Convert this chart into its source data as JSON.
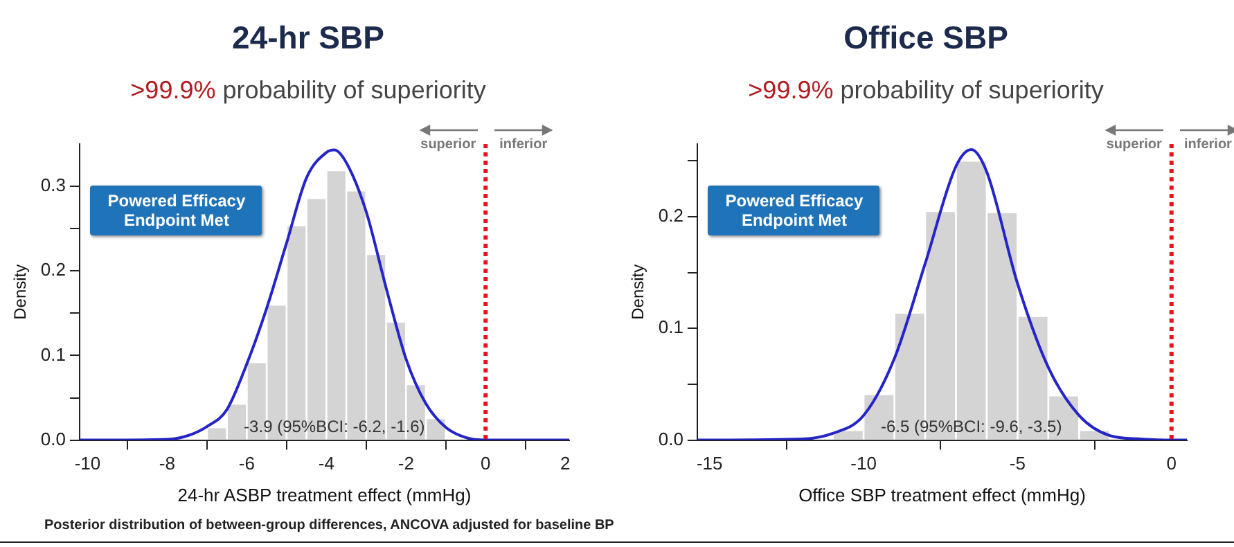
{
  "chart_data": [
    {
      "type": "histogram",
      "title": "24-hr SBP",
      "subtitle": ">99.9% probability of superiority",
      "xlabel": "24-hr ASBP treatment effect (mmHg)",
      "ylabel": "Density",
      "xlim": [
        -10.2,
        2.1
      ],
      "xticks": [
        -10,
        -8,
        -6,
        -4,
        -2,
        0,
        2
      ],
      "ylim": [
        0,
        0.35
      ],
      "yticks": [
        {
          "value": 0,
          "label": "0.0"
        },
        {
          "value": 0.05,
          "label": null
        },
        0.1,
        {
          "value": 0.15,
          "label": null
        },
        0.2,
        {
          "value": 0.25,
          "label": null
        },
        0.3
      ],
      "grid": false,
      "legend": false,
      "marker": "none",
      "series": [
        {
          "color": "#d4d4d4",
          "bins": [
            -7,
            -6.5,
            -6,
            -5.5,
            -5,
            -4.5,
            -4,
            -3.5,
            -3,
            -2.5,
            -2,
            -1.5,
            -1
          ],
          "values": [
            0.015,
            0.043,
            0.092,
            0.16,
            0.254,
            0.286,
            0.319,
            0.295,
            0.22,
            0.14,
            0.066,
            0.026
          ]
        },
        {
          "type": "line",
          "color": "#2424c8",
          "x": [
            -10.2,
            -8,
            -7.5,
            -7,
            -6.5,
            -6,
            -5.5,
            -5,
            -4.5,
            -4,
            -3.8,
            -3.5,
            -3,
            -2.5,
            -2,
            -1.5,
            -1,
            -0.5,
            0,
            2.1
          ],
          "values": [
            0,
            0.001,
            0.005,
            0.016,
            0.036,
            0.09,
            0.156,
            0.233,
            0.31,
            0.34,
            0.343,
            0.328,
            0.27,
            0.18,
            0.096,
            0.043,
            0.015,
            0.003,
            0,
            0
          ]
        }
      ],
      "ref_lines": [
        {
          "axis": "x",
          "value": 0,
          "color": "#e8141c",
          "line_style": "dotted"
        }
      ],
      "annotations": [
        "Powered Efficacy Endpoint Met",
        "superior",
        "inferior",
        "-3.9 (95%BCI: -6.2, -1.6)",
        "Posterior distribution of between-group differences, ANCOVA adjusted for baseline BP"
      ]
    },
    {
      "type": "histogram",
      "title": "Office SBP",
      "subtitle": ">99.9% probability of superiority",
      "xlabel": "Office SBP treatment effect (mmHg)",
      "ylabel": "Density",
      "xlim": [
        -15.4,
        0.5
      ],
      "xticks": [
        -15,
        -10,
        -5,
        0
      ],
      "ylim": [
        0,
        0.265
      ],
      "yticks": [
        {
          "value": 0,
          "label": "0.0"
        },
        {
          "value": 0.05,
          "label": null
        },
        0.1,
        {
          "value": 0.15,
          "label": null
        },
        0.2,
        {
          "value": 0.25,
          "label": null
        }
      ],
      "grid": false,
      "legend": false,
      "marker": "none",
      "series": [
        {
          "color": "#d4d4d4",
          "bins": [
            -11,
            -10,
            -9,
            -8,
            -7,
            -6,
            -5,
            -4,
            -3,
            -2
          ],
          "values": [
            0.009,
            0.041,
            0.114,
            0.205,
            0.25,
            0.204,
            0.111,
            0.04,
            0.009
          ]
        },
        {
          "type": "line",
          "color": "#2424c8",
          "x": [
            -15.4,
            -12,
            -11,
            -10,
            -9,
            -8,
            -7,
            -6.5,
            -6,
            -5,
            -4,
            -3,
            -2,
            -1,
            0,
            0.5
          ],
          "values": [
            0,
            0.001,
            0.006,
            0.022,
            0.073,
            0.158,
            0.245,
            0.26,
            0.24,
            0.14,
            0.065,
            0.022,
            0.004,
            0.001,
            0,
            0
          ]
        }
      ],
      "ref_lines": [
        {
          "axis": "x",
          "value": 0,
          "color": "#e8141c",
          "line_style": "dotted"
        }
      ],
      "annotations": [
        "Powered Efficacy Endpoint Met",
        "superior",
        "inferior",
        "-6.5 (95%BCI: -9.6, -3.5)"
      ]
    }
  ]
}
